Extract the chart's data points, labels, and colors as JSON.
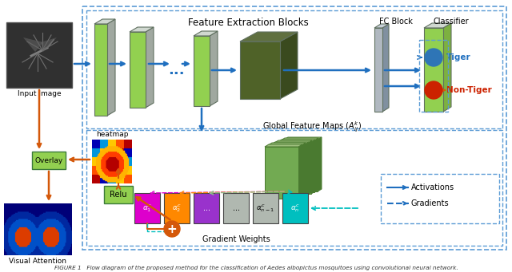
{
  "title": "Feature Extraction Blocks",
  "fc_label": "FC Block",
  "classifier_label": "Classifier",
  "caption": "FIGURE 1   Flow diagram of the proposed method for the classification of Aedes albopictus mosquitoes using convolutional neural network.",
  "bg_color": "#ffffff",
  "box_color": "#5B9BD5",
  "arrow_blue": "#1F6FBF",
  "arrow_orange": "#D4580A",
  "green_light": "#92D050",
  "green_light_side": "#7DB040",
  "green_dark": "#4F6228",
  "green_dark_side": "#3A4A1E",
  "gray_face": "#B0B8C0",
  "gray_side": "#8090A0",
  "relu_color": "#92D050",
  "overlay_color": "#92D050",
  "plus_color": "#D4580A",
  "tiger_color": "#1F6FBF",
  "nontiger_color": "#CC2200",
  "tiger_dot": "#2E75B6",
  "nontiger_dot": "#CC2200",
  "alpha_colors": [
    "#DD00CC",
    "#FF8C00",
    "#9932CC",
    "#C0C0C0",
    "#00BFBF"
  ],
  "dashed_arrow_colors": [
    "#DD00CC",
    "#FF8C00",
    "#90C090",
    "#00BFBF"
  ]
}
